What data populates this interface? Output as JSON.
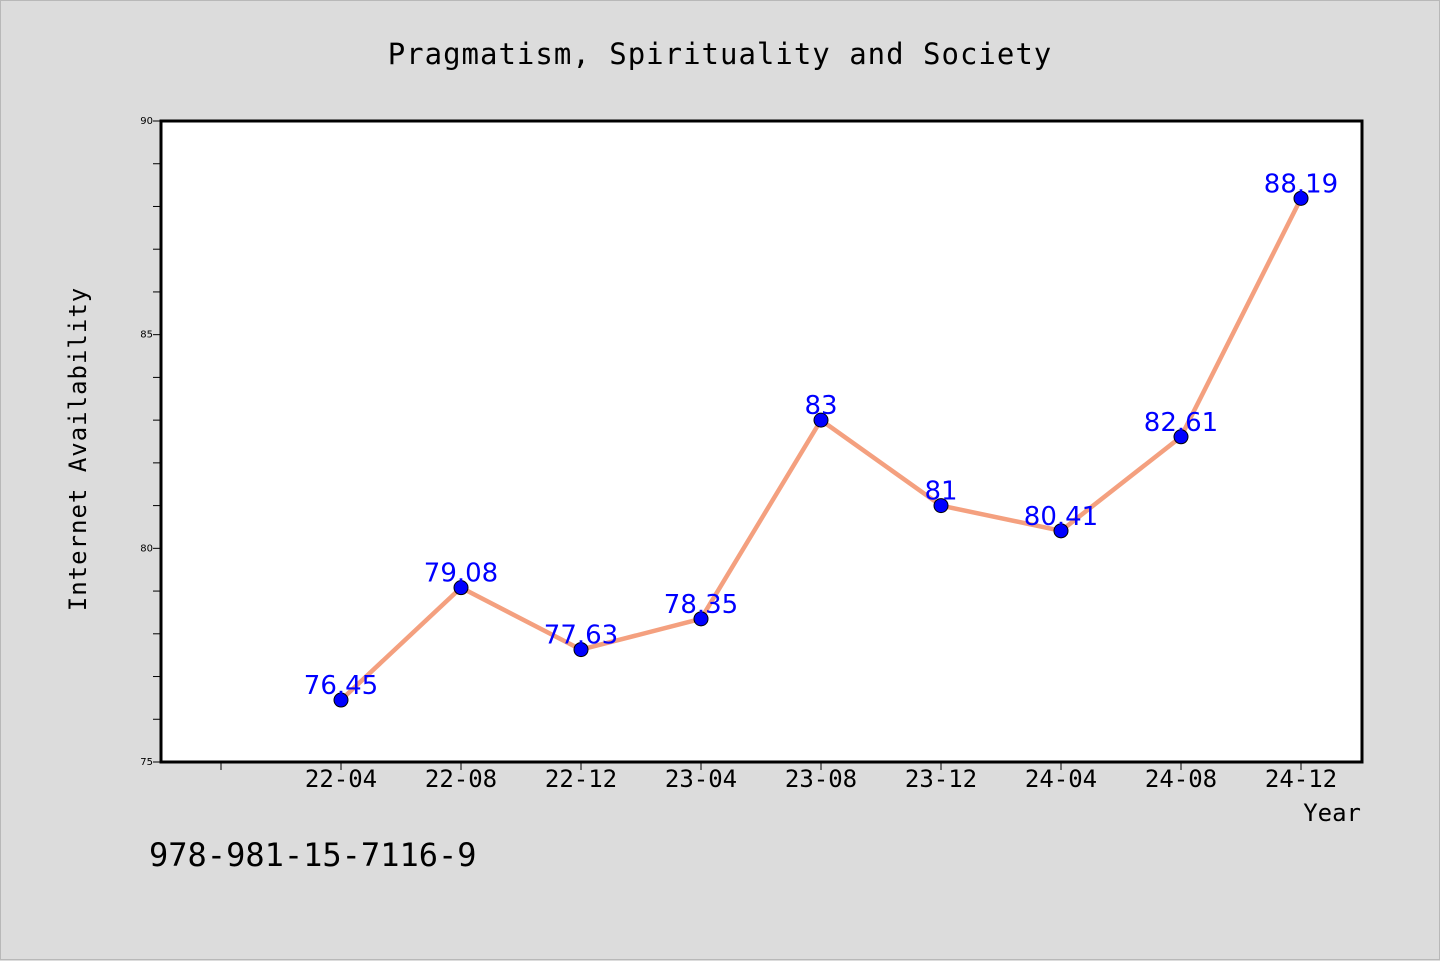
{
  "chart_data": {
    "type": "line",
    "title": "Pragmatism, Spirituality and Society",
    "xlabel": "Year",
    "ylabel": "Internet Availability",
    "categories": [
      "22-04",
      "22-08",
      "22-12",
      "23-04",
      "23-08",
      "23-12",
      "24-04",
      "24-08",
      "24-12"
    ],
    "series": [
      {
        "values": [
          76.45,
          79.08,
          77.63,
          78.35,
          83,
          81,
          80.41,
          82.61,
          88.19
        ],
        "labels": [
          "76.45",
          "79.08",
          "77.63",
          "78.35",
          "83",
          "81",
          "80.41",
          "82.61",
          "88.19"
        ],
        "line_color": "#f4a07f",
        "marker_color": "#0000ff"
      }
    ],
    "ylim": [
      75,
      90
    ],
    "yticks": [
      "75",
      "80",
      "85",
      "90"
    ],
    "grid": false,
    "legend": "none"
  },
  "footer": {
    "isbn": "978-981-15-7116-9"
  }
}
